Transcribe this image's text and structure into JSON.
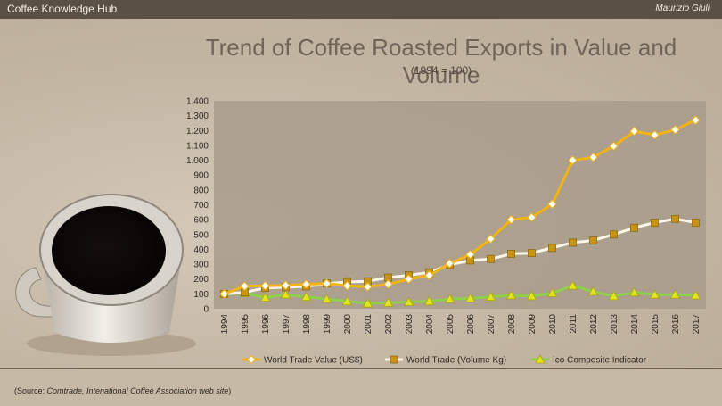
{
  "header": {
    "app_title": "Coffee Knowledge Hub",
    "author": "Maurizio Giuli"
  },
  "colors": {
    "topbar": "#5b5044",
    "background": "#c6b9a6",
    "plot_area": "#a89b89",
    "value_line": "#f2b414",
    "volume_line": "#fbf6e8",
    "volume_marker": "#c79417",
    "ico_line": "#8fd04a",
    "ico_marker": "#e3e31e"
  },
  "source": {
    "prefix": "(Source: ",
    "italic": "Comtrade, Intenational Coffee Association web site",
    "suffix": ")"
  },
  "chart_data": {
    "type": "line",
    "title": "Trend of Coffee Roasted Exports in Value and Volume",
    "subtitle": "(1994 = 100)",
    "xlabel": "",
    "ylabel": "",
    "ylim": [
      0,
      1400
    ],
    "yticks": [
      0,
      100,
      200,
      300,
      400,
      500,
      600,
      700,
      800,
      900,
      1000,
      1100,
      1200,
      1300,
      1400
    ],
    "ytick_labels": [
      "0",
      "100",
      "200",
      "300",
      "400",
      "500",
      "600",
      "700",
      "800",
      "900",
      "1.000",
      "1.100",
      "1.200",
      "1.300",
      "1.400"
    ],
    "categories": [
      "1994",
      "1995",
      "1996",
      "1997",
      "1998",
      "1999",
      "2000",
      "2001",
      "2002",
      "2003",
      "2004",
      "2005",
      "2006",
      "2007",
      "2008",
      "2009",
      "2010",
      "2011",
      "2012",
      "2013",
      "2014",
      "2015",
      "2016",
      "2017"
    ],
    "grid": false,
    "legend_position": "bottom",
    "series": [
      {
        "name": "World Trade Value (US$)",
        "marker": "diamond",
        "values": [
          100,
          152,
          155,
          158,
          165,
          170,
          155,
          148,
          165,
          200,
          225,
          305,
          365,
          470,
          600,
          615,
          705,
          1000,
          1020,
          1095,
          1195,
          1170,
          1205,
          1270
        ]
      },
      {
        "name": "World Trade (Volume Kg)",
        "marker": "square",
        "values": [
          100,
          110,
          140,
          145,
          150,
          170,
          180,
          185,
          210,
          225,
          245,
          295,
          325,
          335,
          370,
          375,
          410,
          445,
          460,
          500,
          545,
          580,
          605,
          580
        ]
      },
      {
        "name": "Ico Composite Indicator",
        "marker": "triangle",
        "values": [
          100,
          105,
          75,
          95,
          80,
          65,
          50,
          35,
          40,
          45,
          50,
          65,
          70,
          80,
          90,
          85,
          105,
          155,
          115,
          85,
          110,
          95,
          95,
          90
        ]
      }
    ]
  }
}
